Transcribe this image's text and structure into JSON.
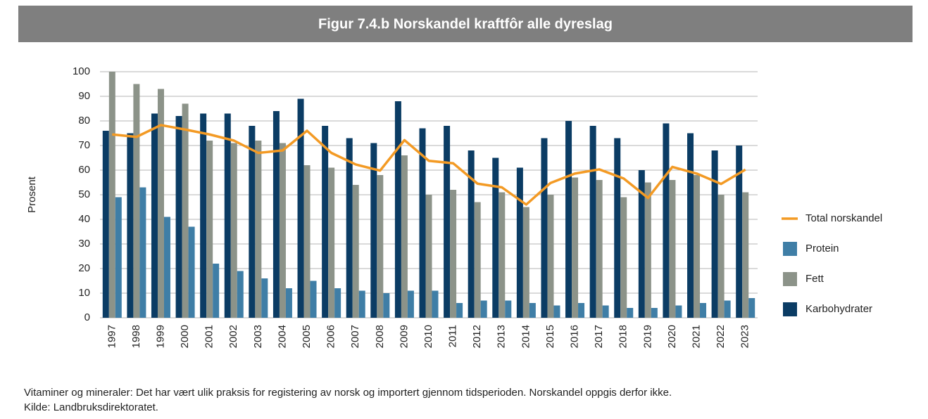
{
  "chart_data": {
    "type": "bar",
    "title": "Figur 7.4.b Norskandel kraftfôr alle dyreslag",
    "y_label": "Prosent",
    "categories": [
      "1997",
      "1998",
      "1999",
      "2000",
      "2001",
      "2002",
      "2003",
      "2004",
      "2005",
      "2006",
      "2007",
      "2008",
      "2009",
      "2010",
      "2011",
      "2012",
      "2013",
      "2014",
      "2015",
      "2016",
      "2017",
      "2018",
      "2019",
      "2020",
      "2021",
      "2022",
      "2023"
    ],
    "series": [
      {
        "name": "Karbohydrater",
        "color": "#0b3c64",
        "type": "bar",
        "values": [
          76,
          75,
          83,
          82,
          83,
          83,
          78,
          84,
          89,
          78,
          73,
          71,
          88,
          77,
          78,
          68,
          65,
          61,
          73,
          80,
          78,
          73,
          60,
          79,
          75,
          68,
          70
        ]
      },
      {
        "name": "Fett",
        "color": "#8c9389",
        "type": "bar",
        "values": [
          100,
          95,
          93,
          87,
          72,
          71,
          72,
          71,
          62,
          61,
          54,
          58,
          66,
          50,
          52,
          47,
          51,
          45,
          50,
          57,
          56,
          49,
          55,
          56,
          58,
          50,
          51
        ]
      },
      {
        "name": "Protein",
        "color": "#3f7ea6",
        "type": "bar",
        "values": [
          49,
          53,
          41,
          37,
          22,
          19,
          16,
          12,
          15,
          12,
          11,
          10,
          11,
          11,
          6,
          7,
          7,
          6,
          5,
          6,
          5,
          4,
          4,
          5,
          6,
          7,
          8
        ]
      },
      {
        "name": "Total norskandel",
        "color": "#f39a24",
        "type": "line",
        "values": [
          74.5,
          73.5,
          78.3,
          76.5,
          74.5,
          72,
          67,
          68,
          76,
          67,
          62.3,
          59.8,
          72.2,
          63.8,
          62.8,
          54.5,
          53,
          46,
          54.8,
          58.6,
          60.3,
          56.6,
          48.7,
          61.3,
          58.6,
          54.4,
          60.2
        ]
      }
    ],
    "ylim": [
      0,
      100
    ],
    "yticks": [
      0,
      10,
      20,
      30,
      40,
      50,
      60,
      70,
      80,
      90,
      100
    ],
    "grid": true,
    "legend": "right",
    "notes": [
      "Vitaminer og mineraler: Det har vært ulik praksis for registering av norsk og importert gjennom tidsperioden. Norskandel oppgis derfor ikke.",
      "Kilde: Landbruksdirektoratet."
    ]
  }
}
